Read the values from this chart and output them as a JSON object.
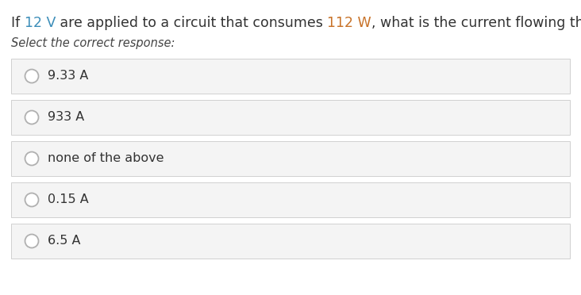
{
  "background_color": "#ffffff",
  "question_prefix": "If ",
  "question_12V": "12 V",
  "question_mid": " are applied to a circuit that consumes ",
  "question_112W": "112 W",
  "question_suffix": ", what is the current flowing through the circuit?",
  "color_12V": "#3d8eb9",
  "color_112W": "#c8732a",
  "color_question": "#333333",
  "subtitle": "Select the correct response:",
  "subtitle_color": "#444444",
  "subtitle_fontsize": 10.5,
  "question_fontsize": 12.5,
  "options": [
    "9.33 A",
    "933 A",
    "none of the above",
    "0.15 A",
    "6.5 A"
  ],
  "option_fontsize": 11.5,
  "option_text_color": "#333333",
  "option_bg_color": "#f4f4f4",
  "option_border_color": "#d0d0d0",
  "circle_edge_color": "#b0b0b0",
  "circle_face_color": "#ffffff"
}
